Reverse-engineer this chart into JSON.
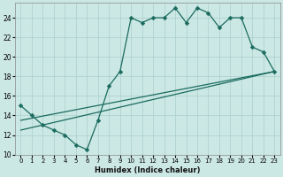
{
  "xlabel": "Humidex (Indice chaleur)",
  "bg_color": "#cce8e5",
  "line_color": "#1a6b5e",
  "grid_color": "#aacfcc",
  "xlim": [
    -0.5,
    23.5
  ],
  "ylim": [
    10,
    25.5
  ],
  "xticks": [
    0,
    1,
    2,
    3,
    4,
    5,
    6,
    7,
    8,
    9,
    10,
    11,
    12,
    13,
    14,
    15,
    16,
    17,
    18,
    19,
    20,
    21,
    22,
    23
  ],
  "yticks": [
    10,
    12,
    14,
    16,
    18,
    20,
    22,
    24
  ],
  "jagged_x": [
    0,
    1,
    2,
    3,
    4,
    5,
    6,
    7,
    8,
    9,
    10,
    11,
    12,
    13,
    14,
    15,
    16,
    17,
    18,
    19,
    20,
    21,
    22,
    23
  ],
  "jagged_y": [
    15,
    14,
    13,
    12.5,
    12,
    11,
    10.5,
    13.5,
    17,
    18.5,
    24,
    23.5,
    24,
    24,
    25,
    23.5,
    25,
    24.5,
    23,
    24,
    24,
    21,
    20.5,
    18.5
  ],
  "trend1_x": [
    0,
    23
  ],
  "trend1_y": [
    13.5,
    18.5
  ],
  "trend2_x": [
    0,
    23
  ],
  "trend2_y": [
    12.5,
    18.5
  ],
  "markersize": 2.5,
  "linewidth": 0.9,
  "xlabel_fontsize": 6.0,
  "tick_fontsize": 5.0
}
